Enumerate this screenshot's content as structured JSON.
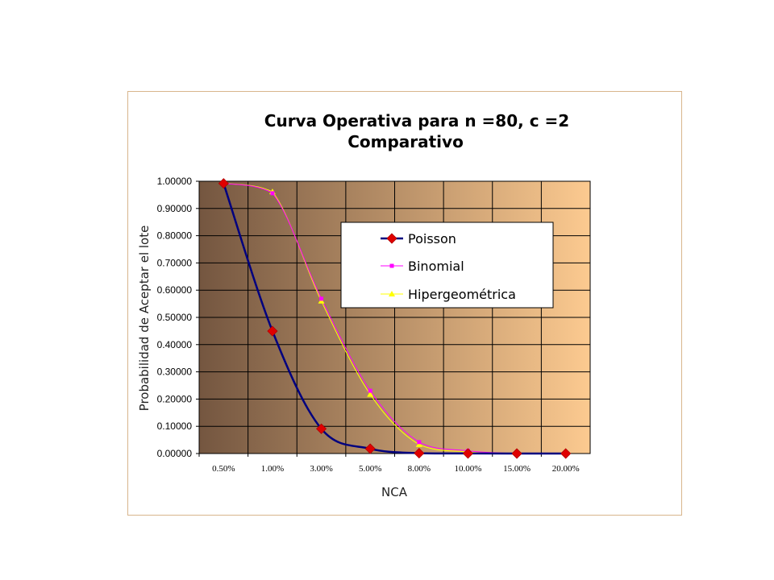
{
  "chart_data": {
    "type": "line",
    "title": "Curva Operativa para  n =80, c =2",
    "subtitle": "Comparativo",
    "xlabel": "NCA",
    "ylabel": "Probabilidad de Aceptar el lote",
    "categories": [
      "0.50%",
      "1.00%",
      "3.00%",
      "5.00%",
      "8.00%",
      "10.00%",
      "15.00%",
      "20.00%"
    ],
    "yticks": [
      "0.00000",
      "0.10000",
      "0.20000",
      "0.30000",
      "0.40000",
      "0.50000",
      "0.60000",
      "0.70000",
      "0.80000",
      "0.90000",
      "1.00000"
    ],
    "ylim": [
      0,
      1
    ],
    "grid": true,
    "legend_position": "right",
    "series": [
      {
        "name": "Poisson",
        "marker": "diamond",
        "color": "#00007f",
        "marker_color": "#e00000",
        "values": [
          0.992,
          0.4497,
          0.0908,
          0.0176,
          0.0012,
          0.0002,
          0.0,
          0.0
        ]
      },
      {
        "name": "Binomial",
        "marker": "square",
        "color": "#ff00ff",
        "marker_color": "#ff00ff",
        "values": [
          0.9925,
          0.956,
          0.5685,
          0.2306,
          0.042,
          0.01,
          0.0003,
          0.0
        ]
      },
      {
        "name": "Hipergeométrica",
        "marker": "triangle",
        "color": "#ffff00",
        "marker_color": "#ffff00",
        "values": [
          0.993,
          0.961,
          0.56,
          0.217,
          0.033,
          0.006,
          0.0001,
          0.0
        ]
      }
    ],
    "colors": {
      "plot_gradient_start": "#7a5c44",
      "plot_gradient_end": "#fbc98e",
      "grid": "#000000",
      "frame": "#d8b58c"
    }
  }
}
